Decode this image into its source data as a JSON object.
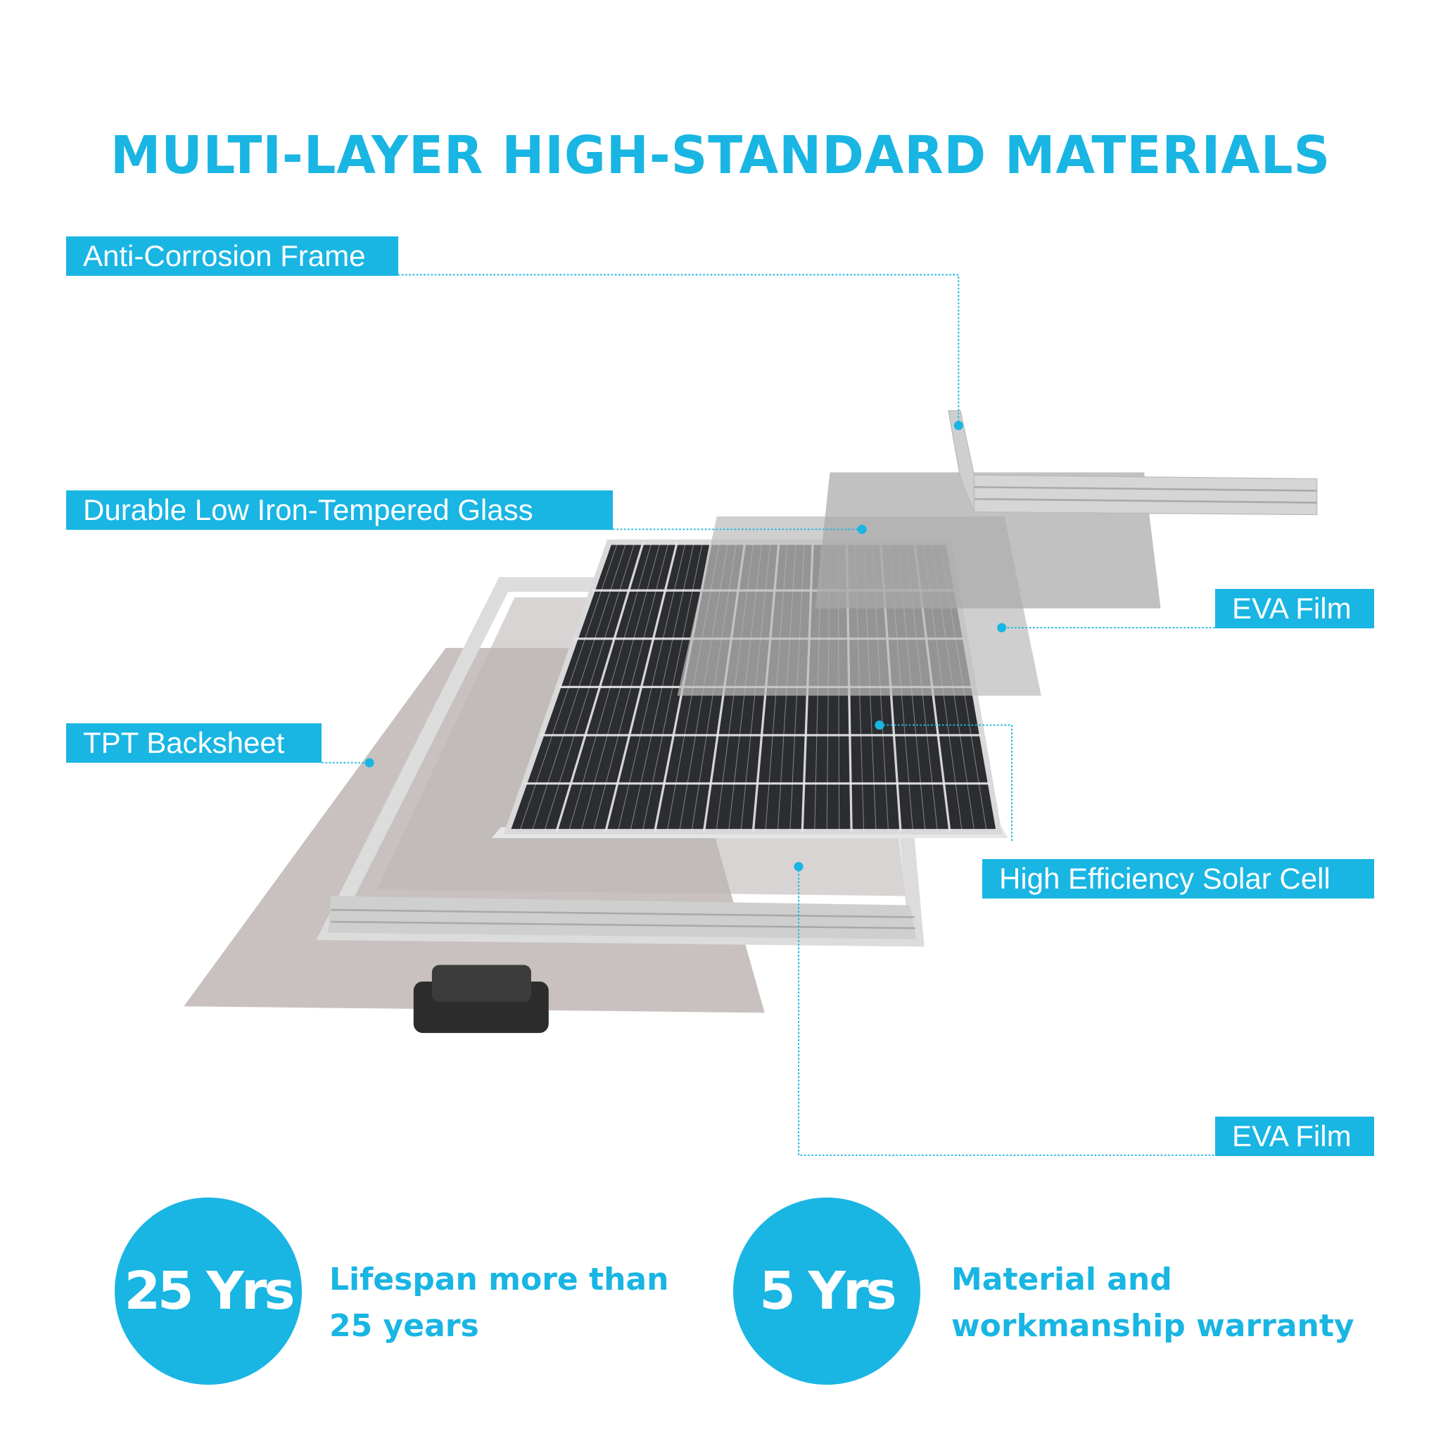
{
  "title": "MULTI-LAYER HIGH-STANDARD MATERIALS",
  "labels": {
    "frame": "Anti-Corrosion Frame",
    "glass": "Durable Low Iron-Tempered Glass",
    "eva_top": "EVA Film",
    "backsheet": "TPT Backsheet",
    "cell": "High Efficiency Solar Cell",
    "eva_bottom": "EVA Film"
  },
  "features": [
    {
      "badge": "25 Yrs",
      "line1": "Lifespan more than",
      "line2": "25 years"
    },
    {
      "badge": "5 Yrs",
      "line1": "Material and",
      "line2": "workmanship warranty"
    }
  ],
  "colors": {
    "accent": "#19b5e3",
    "cell": "#2b2d30",
    "frame": "#d9d9d9",
    "backsheet": "#c8c1bf"
  }
}
